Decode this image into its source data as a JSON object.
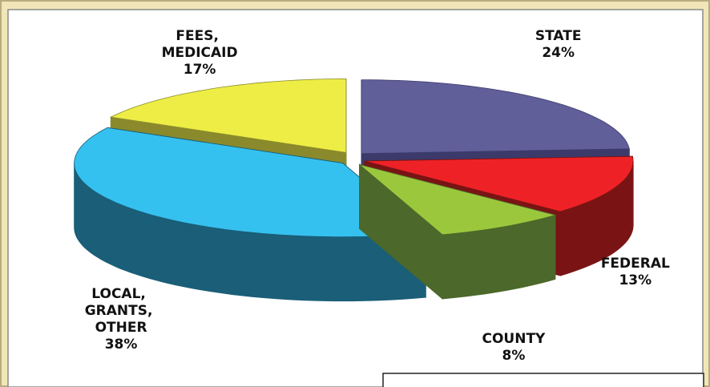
{
  "chart_data": {
    "type": "pie",
    "categories": [
      "STATE",
      "FEDERAL",
      "COUNTY",
      "LOCAL, GRANTS, OTHER",
      "FEES, MEDICAID"
    ],
    "values": [
      24,
      13,
      8,
      38,
      17
    ],
    "value_labels": [
      "24%",
      "13%",
      "8%",
      "38%",
      "17%"
    ],
    "colors": [
      "#615f99",
      "#ee2226",
      "#9bc73d",
      "#35c1ef",
      "#eded45"
    ],
    "side_colors": [
      "#3b3a6b",
      "#7a1414",
      "#4c682a",
      "#1a5e78",
      "#8a8a2c"
    ]
  }
}
